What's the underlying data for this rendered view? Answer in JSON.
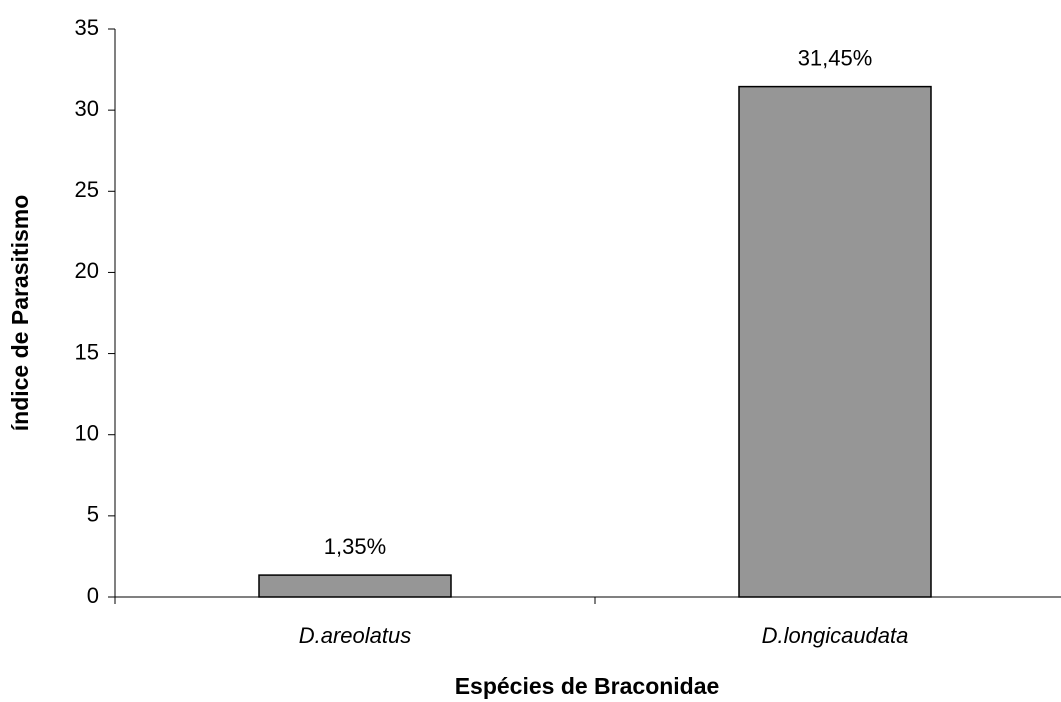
{
  "chart_data": {
    "type": "bar",
    "categories": [
      "D.areolatus",
      "D.longicaudata"
    ],
    "values": [
      1.35,
      31.45
    ],
    "value_labels": [
      "1,35%",
      "31,45%"
    ],
    "color": "#969696",
    "xlabel": "Espécies de Braconidae",
    "ylabel": "índice de Parasitismo",
    "ylim": [
      0,
      35
    ],
    "yticks": [
      0,
      5,
      10,
      15,
      20,
      25,
      30,
      35
    ],
    "grid": false
  }
}
